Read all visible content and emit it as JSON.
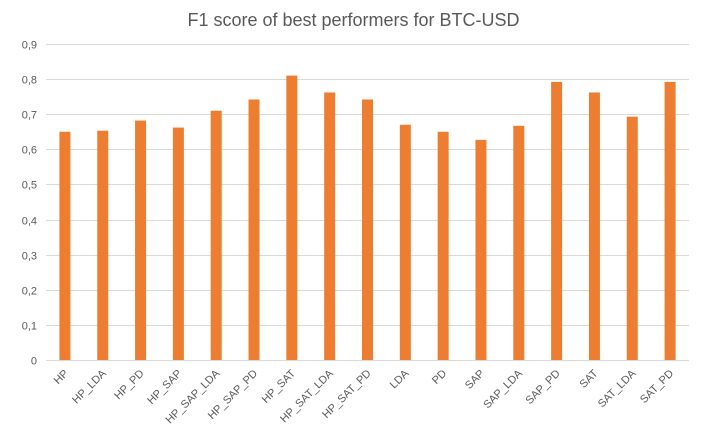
{
  "chart_data": {
    "type": "bar",
    "title": "F1 score of best performers for BTC-USD",
    "xlabel": "",
    "ylabel": "",
    "categories": [
      "HP",
      "HP_LDA",
      "HP_PD",
      "HP_SAP",
      "HP_SAP_LDA",
      "HP_SAP_PD",
      "HP_SAT",
      "HP_SAT_LDA",
      "HP_SAT_PD",
      "LDA",
      "PD",
      "SAP",
      "SAP_LDA",
      "SAP_PD",
      "SAT",
      "SAT_LDA",
      "SAT_PD"
    ],
    "values": [
      0.65,
      0.653,
      0.682,
      0.662,
      0.71,
      0.742,
      0.81,
      0.762,
      0.742,
      0.67,
      0.65,
      0.627,
      0.667,
      0.792,
      0.762,
      0.693,
      0.792
    ],
    "ylim": [
      0,
      0.9
    ],
    "yticks": [
      "0",
      "0,1",
      "0,2",
      "0,3",
      "0,4",
      "0,5",
      "0,6",
      "0,7",
      "0,8",
      "0,9"
    ],
    "grid": true,
    "legend": "none",
    "bar_color": "#ED7D31"
  }
}
